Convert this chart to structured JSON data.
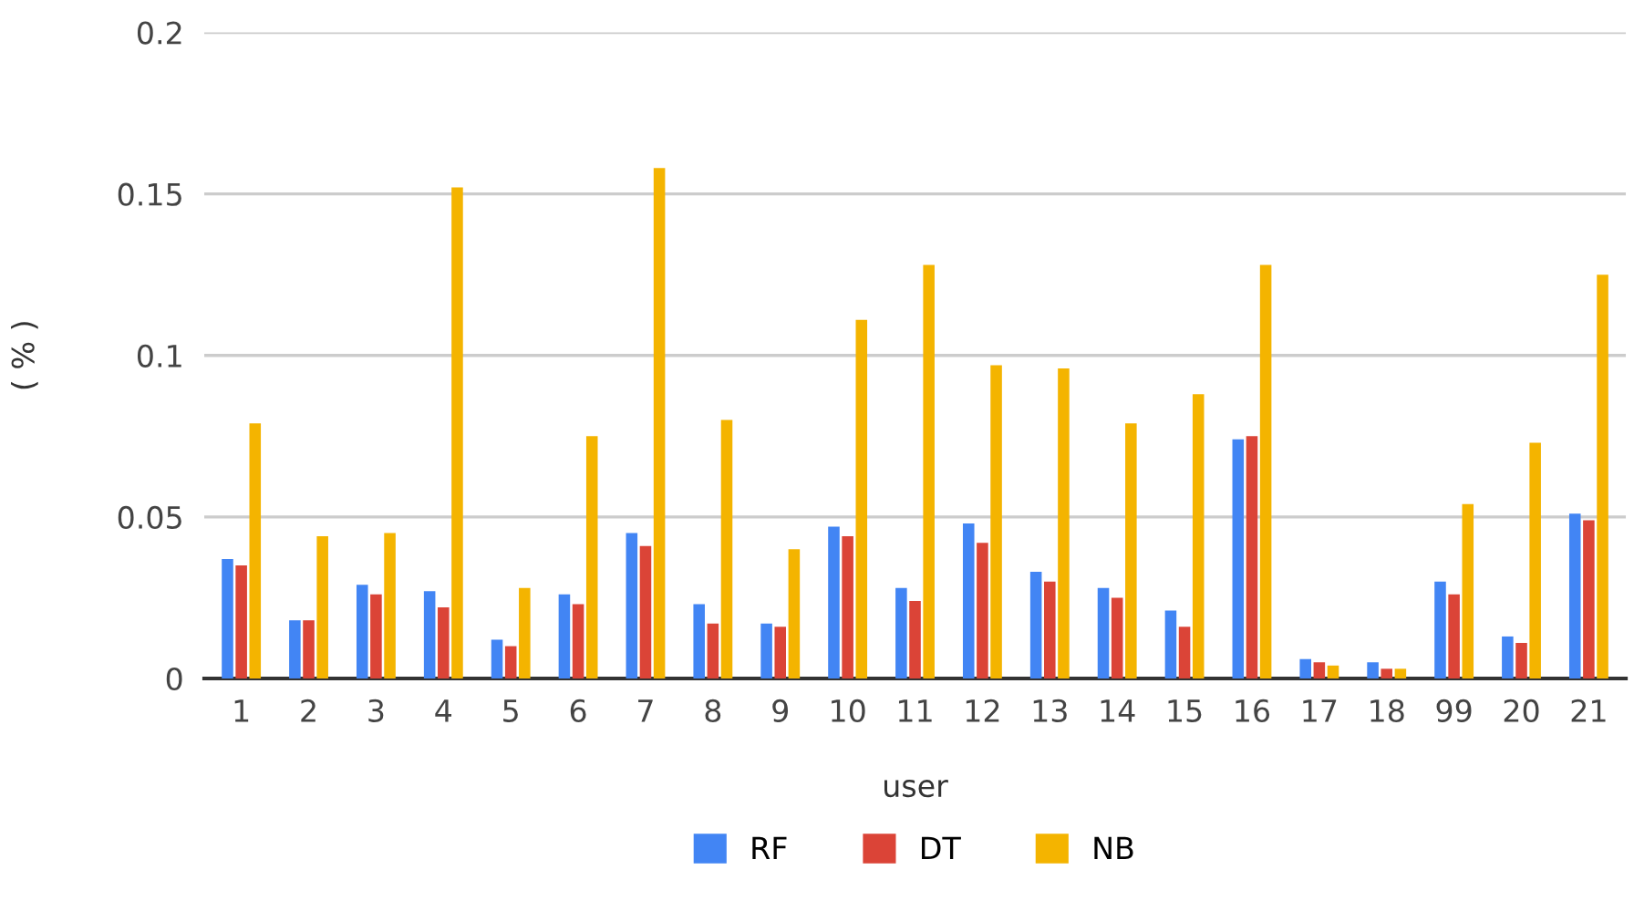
{
  "chart_data": {
    "type": "bar",
    "xlabel": "user",
    "ylabel": "( % )",
    "categories": [
      "1",
      "2",
      "3",
      "4",
      "5",
      "6",
      "7",
      "8",
      "9",
      "10",
      "11",
      "12",
      "13",
      "14",
      "15",
      "16",
      "17",
      "18",
      "99",
      "20",
      "21"
    ],
    "series": [
      {
        "name": "RF",
        "color": "#4285f4",
        "values": [
          0.037,
          0.018,
          0.029,
          0.027,
          0.012,
          0.026,
          0.045,
          0.023,
          0.017,
          0.047,
          0.028,
          0.048,
          0.033,
          0.028,
          0.021,
          0.074,
          0.006,
          0.005,
          0.03,
          0.013,
          0.051
        ]
      },
      {
        "name": "DT",
        "color": "#db4437",
        "values": [
          0.035,
          0.018,
          0.026,
          0.022,
          0.01,
          0.023,
          0.041,
          0.017,
          0.016,
          0.044,
          0.024,
          0.042,
          0.03,
          0.025,
          0.016,
          0.075,
          0.005,
          0.003,
          0.026,
          0.011,
          0.049
        ]
      },
      {
        "name": "NB",
        "color": "#f4b400",
        "values": [
          0.079,
          0.044,
          0.045,
          0.152,
          0.028,
          0.075,
          0.158,
          0.08,
          0.04,
          0.111,
          0.128,
          0.097,
          0.096,
          0.079,
          0.088,
          0.128,
          0.004,
          0.003,
          0.054,
          0.073,
          0.125
        ]
      }
    ],
    "ylim": [
      0,
      0.2
    ],
    "yticks": [
      0,
      0.05,
      0.1,
      0.15,
      0.2
    ],
    "grid": "y",
    "legend": "bottom"
  }
}
